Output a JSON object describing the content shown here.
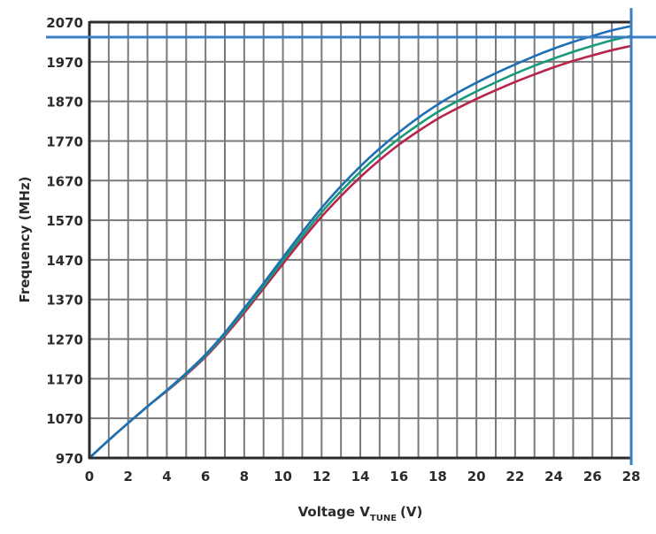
{
  "chart_data": {
    "type": "line",
    "title": "",
    "xlabel": "Voltage V_TUNE (V)",
    "xlabel_main": "Voltage V",
    "xlabel_sub": "TUNE",
    "xlabel_suffix": "(V)",
    "ylabel": "Frequency (MHz)",
    "xlim": [
      0,
      28
    ],
    "ylim": [
      970,
      2070
    ],
    "grid": true,
    "legend": "none",
    "x_ticks": [
      "0",
      "2",
      "4",
      "6",
      "8",
      "10",
      "12",
      "14",
      "16",
      "18",
      "20",
      "22",
      "24",
      "26",
      "28"
    ],
    "y_ticks": [
      "970",
      "1070",
      "1170",
      "1270",
      "1370",
      "1470",
      "1570",
      "1670",
      "1770",
      "1870",
      "1970",
      "2070"
    ],
    "x": [
      0,
      1,
      2,
      3,
      4,
      5,
      6,
      7,
      8,
      9,
      10,
      11,
      12,
      13,
      14,
      15,
      16,
      17,
      18,
      19,
      20,
      21,
      22,
      23,
      24,
      25,
      26,
      27,
      28
    ],
    "series": [
      {
        "name": "curve-blue",
        "color": "#1f6fb5",
        "values": [
          970,
          1015,
          1058,
          1100,
          1141,
          1184,
          1231,
          1286,
          1348,
          1411,
          1476,
          1540,
          1601,
          1656,
          1706,
          1751,
          1792,
          1829,
          1862,
          1891,
          1917,
          1941,
          1963,
          1984,
          2003,
          2020,
          2035,
          2049,
          2060
        ]
      },
      {
        "name": "curve-green",
        "color": "#1a9a7a",
        "values": [
          970,
          1015,
          1058,
          1100,
          1140,
          1182,
          1228,
          1282,
          1342,
          1404,
          1468,
          1530,
          1590,
          1643,
          1692,
          1736,
          1776,
          1811,
          1843,
          1870,
          1895,
          1918,
          1940,
          1960,
          1978,
          1995,
          2010,
          2024,
          2035
        ]
      },
      {
        "name": "curve-red",
        "color": "#b8254a",
        "values": [
          970,
          1015,
          1058,
          1100,
          1139,
          1180,
          1225,
          1278,
          1336,
          1398,
          1460,
          1521,
          1579,
          1631,
          1679,
          1722,
          1761,
          1795,
          1826,
          1852,
          1876,
          1898,
          1919,
          1938,
          1956,
          1972,
          1986,
          1999,
          2010
        ]
      }
    ],
    "annotations": [
      {
        "type": "hline",
        "value": 2032,
        "color": "#3a7fc4",
        "label": ""
      },
      {
        "type": "vline",
        "value": 28,
        "color": "#3a7fc4",
        "label": ""
      }
    ]
  },
  "colors": {
    "grid": "#7a7a7c",
    "axis": "#2b2b2e",
    "marker_lines": "#3a7fc4"
  }
}
